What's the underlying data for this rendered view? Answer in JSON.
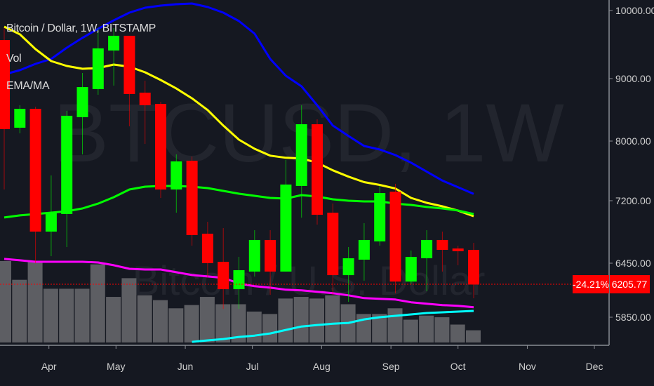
{
  "legend": {
    "symbol": "Bitcoin / Dollar, 1W, BITSTAMP",
    "volume": "Vol",
    "indicator": "EMA/MA"
  },
  "watermark": {
    "ticker": "BTCUSD, 1W",
    "name": "Bitcoin / U.S. Dollar"
  },
  "colors": {
    "background": "#151821",
    "up": "#00ff00",
    "down": "#ff0000",
    "volume": "#5d5e63",
    "line_blue": "#0000ff",
    "line_yellow": "#ffff00",
    "line_green": "#00ff00",
    "line_magenta": "#ff00ff",
    "line_cyan": "#00ffff",
    "last_price_badge": "#ff0000"
  },
  "chart_data": {
    "type": "candlestick",
    "title": "Bitcoin / Dollar, 1W, BITSTAMP",
    "y_scale": "log",
    "ylim": [
      5450,
      10150
    ],
    "y_ticks": [
      "10000.00",
      "9000.00",
      "8000.00",
      "7200.00",
      "6450.00",
      "5850.00"
    ],
    "x_ticks": [
      {
        "label": "Apr",
        "date": "2018-04-01"
      },
      {
        "label": "May",
        "date": "2018-05-01"
      },
      {
        "label": "Jun",
        "date": "2018-06-01"
      },
      {
        "label": "Jul",
        "date": "2018-07-01"
      },
      {
        "label": "Aug",
        "date": "2018-08-01"
      },
      {
        "label": "Sep",
        "date": "2018-09-01"
      },
      {
        "label": "Oct",
        "date": "2018-10-01"
      },
      {
        "label": "Nov",
        "date": "2018-11-01"
      },
      {
        "label": "Dec",
        "date": "2018-12-01"
      }
    ],
    "grid": false,
    "last_price": {
      "value": "6205.77",
      "change": "-24.21%"
    },
    "dates": [
      "2018-03-12",
      "2018-03-19",
      "2018-03-26",
      "2018-04-02",
      "2018-04-09",
      "2018-04-16",
      "2018-04-23",
      "2018-04-30",
      "2018-05-07",
      "2018-05-14",
      "2018-05-21",
      "2018-05-28",
      "2018-06-04",
      "2018-06-11",
      "2018-06-18",
      "2018-06-25",
      "2018-07-02",
      "2018-07-09",
      "2018-07-16",
      "2018-07-23",
      "2018-07-30",
      "2018-08-06",
      "2018-08-13",
      "2018-08-20",
      "2018-08-27",
      "2018-09-03",
      "2018-09-10",
      "2018-09-17",
      "2018-09-24",
      "2018-10-01",
      "2018-10-08"
    ],
    "ohlc": [
      [
        9554,
        9732,
        7344,
        8182
      ],
      [
        8204,
        8559,
        8118,
        8502
      ],
      [
        8502,
        8536,
        6450,
        6819
      ],
      [
        6819,
        7529,
        6530,
        7050
      ],
      [
        7033,
        8468,
        6636,
        8391
      ],
      [
        8368,
        9079,
        7814,
        8858
      ],
      [
        8823,
        9732,
        8730,
        9431
      ],
      [
        9400,
        9732,
        8882,
        9617
      ],
      [
        9617,
        9617,
        8226,
        8742
      ],
      [
        8765,
        8964,
        7960,
        8559
      ],
      [
        8581,
        8616,
        7236,
        7344
      ],
      [
        7344,
        7814,
        7050,
        7718
      ],
      [
        7727,
        7785,
        6652,
        6777
      ],
      [
        6794,
        6938,
        6288,
        6450
      ],
      [
        6466,
        6861,
        5939,
        6154
      ],
      [
        6154,
        6522,
        5939,
        6369
      ],
      [
        6353,
        6836,
        6296,
        6719
      ],
      [
        6719,
        6836,
        6092,
        6353
      ],
      [
        6353,
        7737,
        6353,
        7409
      ],
      [
        7390,
        8559,
        6989,
        8258
      ],
      [
        8258,
        8335,
        6904,
        7024
      ],
      [
        7050,
        7164,
        6092,
        6312
      ],
      [
        6312,
        6636,
        6015,
        6506
      ],
      [
        6490,
        6921,
        6249,
        6719
      ],
      [
        6702,
        7390,
        6652,
        7299
      ],
      [
        7316,
        7418,
        6108,
        6239
      ],
      [
        6239,
        6595,
        6209,
        6522
      ],
      [
        6506,
        6836,
        6131,
        6719
      ],
      [
        6719,
        6819,
        6353,
        6603
      ],
      [
        6619,
        6652,
        6426,
        6587
      ],
      [
        6603,
        6685,
        6054,
        6205.77
      ]
    ],
    "volume_relative": [
      100,
      77,
      99,
      66,
      66,
      66,
      96,
      56,
      79,
      58,
      52,
      42,
      46,
      56,
      47,
      47,
      38,
      35,
      54,
      56,
      54,
      58,
      47,
      35,
      35,
      42,
      28,
      33,
      31,
      22,
      15
    ],
    "series": [
      {
        "color": "#0000ff",
        "values": [
          9059,
          9118,
          9208,
          9278,
          9441,
          9586,
          9721,
          9849,
          9967,
          10044,
          10076,
          10098,
          10109,
          10054,
          9967,
          9838,
          9648,
          9278,
          9039,
          8870,
          8559,
          8237,
          8077,
          7931,
          7882,
          7804,
          7700,
          7579,
          7461,
          7373,
          7287
        ]
      },
      {
        "color": "#ffff00",
        "values": [
          9753,
          9638,
          9420,
          9248,
          9178,
          9138,
          9148,
          9198,
          9168,
          9088,
          8976,
          8834,
          8672,
          8482,
          8237,
          8021,
          7892,
          7796,
          7767,
          7758,
          7700,
          7597,
          7513,
          7440,
          7404,
          7357,
          7236,
          7173,
          7129,
          7076,
          7006
        ]
      },
      {
        "color": "#00ff00",
        "values": [
          6990,
          7016,
          7033,
          7050,
          7068,
          7103,
          7164,
          7245,
          7344,
          7381,
          7390,
          7390,
          7381,
          7362,
          7326,
          7290,
          7263,
          7236,
          7227,
          7272,
          7254,
          7218,
          7200,
          7191,
          7191,
          7164,
          7147,
          7121,
          7103,
          7077,
          7033
        ]
      },
      {
        "color": "#ff00ff",
        "values": [
          6499,
          6483,
          6466,
          6466,
          6466,
          6466,
          6458,
          6426,
          6385,
          6377,
          6377,
          6345,
          6313,
          6297,
          6281,
          6218,
          6187,
          6171,
          6148,
          6140,
          6125,
          6109,
          6086,
          6055,
          6048,
          6040,
          6010,
          5995,
          5980,
          5972,
          5957
        ]
      },
      {
        "color": "#00ffff",
        "values": [
          null,
          null,
          null,
          null,
          null,
          null,
          null,
          null,
          null,
          null,
          null,
          null,
          5595,
          5610,
          5624,
          5645,
          5659,
          5681,
          5717,
          5753,
          5768,
          5782,
          5790,
          5827,
          5850,
          5865,
          5880,
          5895,
          5902,
          5910,
          5917
        ]
      }
    ]
  }
}
